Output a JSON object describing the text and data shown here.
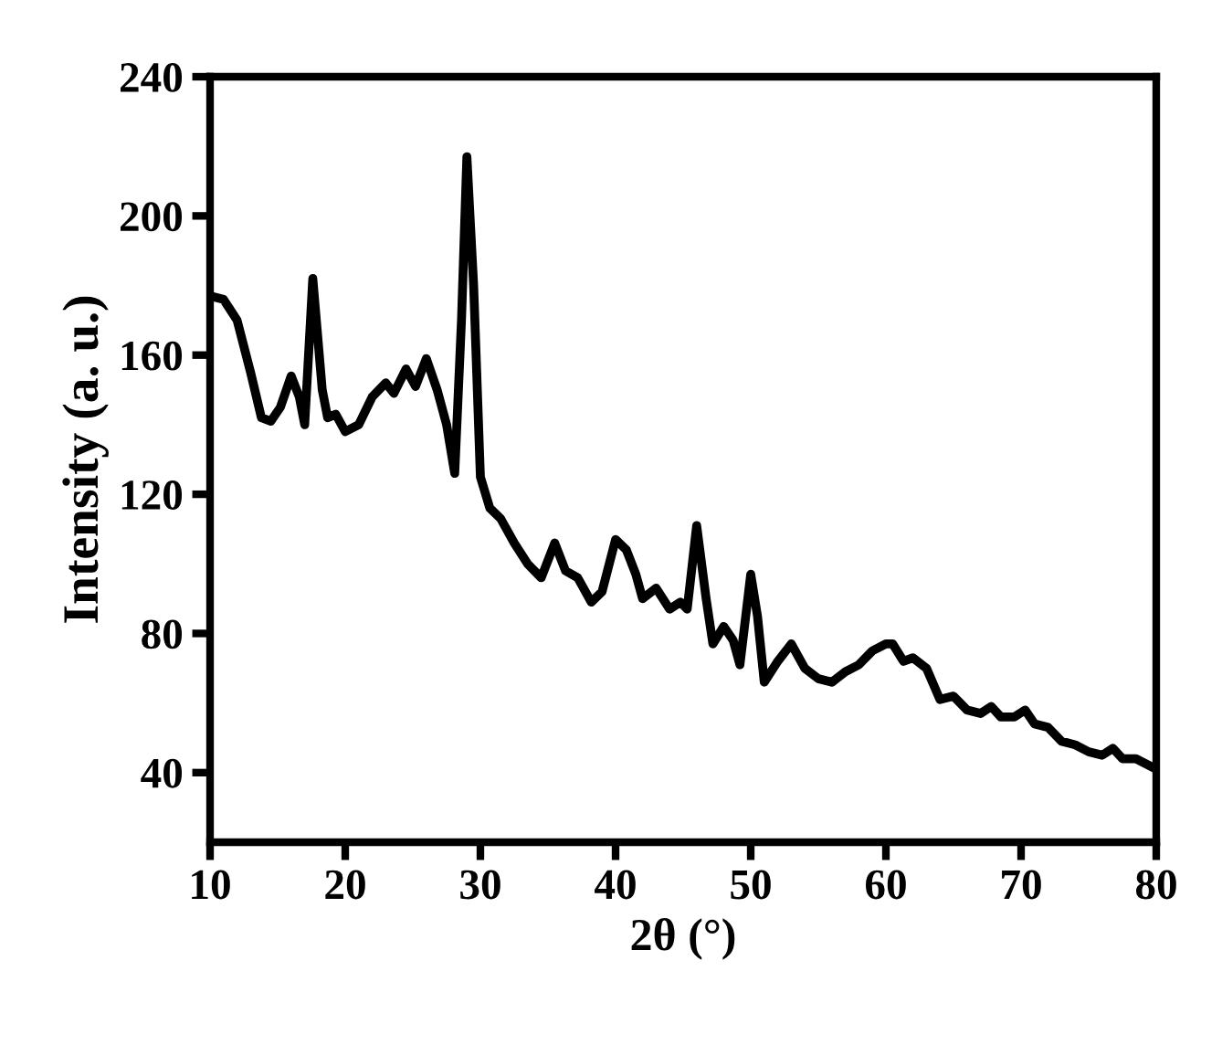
{
  "chart_data": {
    "type": "line",
    "xlabel": "2θ (°)",
    "ylabel": "Intensity (a. u.)",
    "xlim": [
      10,
      80
    ],
    "xticks": [
      10,
      20,
      30,
      40,
      50,
      60,
      70,
      80
    ],
    "ylim": [
      20,
      240
    ],
    "yticks": [
      40,
      80,
      120,
      160,
      200,
      240
    ],
    "grid": false,
    "legend": false,
    "marker": "none",
    "line_style": "solid",
    "series": [
      {
        "color": "#000000",
        "x": [
          10,
          11,
          12,
          13,
          13.8,
          14.5,
          15.2,
          16,
          16.6,
          17,
          17.6,
          18.3,
          18.7,
          19.3,
          20,
          21,
          22,
          23,
          23.6,
          24.5,
          25.2,
          26,
          26.8,
          27.5,
          28.1,
          28.6,
          29.0,
          29.5,
          30,
          30.7,
          31.5,
          32.5,
          33.5,
          34.5,
          35.5,
          36.3,
          37.2,
          38.2,
          39,
          40,
          40.8,
          41.5,
          42,
          43,
          44,
          44.8,
          45.3,
          46,
          46.7,
          47.2,
          48,
          48.7,
          49.2,
          50,
          50.5,
          51,
          52,
          53,
          54,
          55,
          56,
          57,
          58,
          59,
          60,
          60.5,
          61.3,
          62,
          63,
          64,
          65,
          66,
          67,
          67.8,
          68.5,
          69.5,
          70.3,
          71,
          72,
          73,
          74,
          75,
          76,
          76.8,
          77.5,
          78.5,
          80
        ],
        "values": [
          177,
          176,
          170,
          155,
          142,
          141,
          145,
          154,
          148,
          140,
          182,
          150,
          142,
          143,
          138,
          140,
          148,
          152,
          149,
          156,
          151,
          159,
          150,
          140,
          126,
          170,
          217,
          180,
          125,
          116,
          113,
          106,
          100,
          96,
          106,
          98,
          96,
          89,
          92,
          107,
          104,
          97,
          90,
          93,
          87,
          89,
          87,
          111,
          90,
          77,
          82,
          78,
          71,
          97,
          85,
          66,
          72,
          77,
          70,
          67,
          66,
          69,
          71,
          75,
          77,
          77,
          72,
          73,
          70,
          61,
          62,
          58,
          57,
          59,
          56,
          56,
          58,
          54,
          53,
          49,
          48,
          46,
          45,
          47,
          44,
          44,
          41
        ]
      }
    ]
  }
}
